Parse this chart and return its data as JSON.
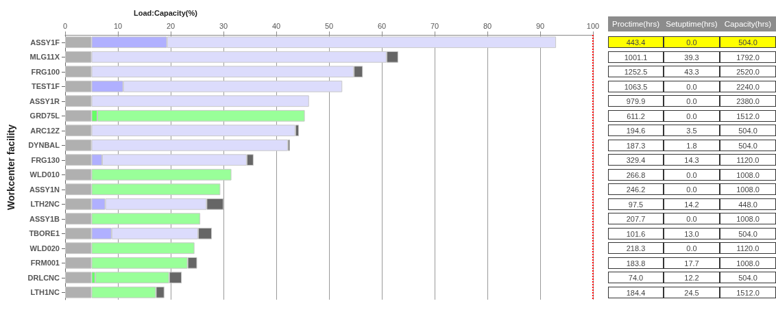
{
  "chart_data": [
    {
      "type": "bar",
      "orientation": "horizontal",
      "stacked": true,
      "title": "Load:Capacity(%)",
      "ylabel": "Workcenter facility",
      "categories": [
        "ASSY1F",
        "MLG11X",
        "FRG100",
        "TEST1F",
        "ASSY1R",
        "GRD75L",
        "ARC12Z",
        "DYNBAL",
        "FRG130",
        "WLD010",
        "ASSY1N",
        "LTH2NC",
        "ASSY1B",
        "TBORE1",
        "WLD020",
        "FRM001",
        "DRLCNC",
        "LTH1NC"
      ],
      "series": [
        {
          "color": "#b0b0b0",
          "values": [
            5,
            5,
            5,
            5,
            5,
            5,
            5,
            5,
            5,
            5,
            5,
            5,
            5,
            5,
            5,
            5,
            5,
            5
          ]
        },
        {
          "color": "#b0b0ff",
          "values": [
            14.3,
            null,
            null,
            6,
            null,
            null,
            null,
            null,
            2,
            null,
            null,
            2.6,
            null,
            3.8,
            null,
            null,
            null,
            null
          ]
        },
        {
          "color": "#66ff66",
          "values": [
            null,
            null,
            null,
            null,
            null,
            1.1,
            null,
            null,
            null,
            null,
            null,
            null,
            null,
            null,
            null,
            null,
            0.7,
            null
          ]
        },
        {
          "color": "#dcdcfc",
          "values": [
            73.7,
            55.9,
            49.7,
            41.5,
            41.2,
            null,
            38.6,
            37.2,
            27.4,
            null,
            null,
            19.2,
            null,
            16.4,
            null,
            null,
            null,
            null
          ]
        },
        {
          "color": "#99ff99",
          "values": [
            null,
            null,
            null,
            null,
            null,
            39.3,
            null,
            null,
            null,
            26.5,
            24.4,
            null,
            20.6,
            null,
            19.5,
            18.2,
            14.0,
            12.2
          ]
        },
        {
          "color": "#666666",
          "values": [
            null,
            2.2,
            1.7,
            null,
            null,
            null,
            0.7,
            0.4,
            1.3,
            null,
            null,
            3.2,
            null,
            2.6,
            null,
            1.8,
            2.4,
            1.6
          ]
        }
      ],
      "xlim": [
        0,
        100
      ],
      "xticks": [
        0,
        10,
        20,
        30,
        40,
        50,
        60,
        70,
        80,
        90,
        100
      ],
      "grid": "x",
      "ref_lines": [
        {
          "axis": "x",
          "value": 100,
          "color": "#ff0000",
          "line_style": "dotted"
        }
      ]
    },
    {
      "type": "other",
      "categories": [
        "Proctime(hrs)",
        "Setuptime(hrs)",
        "Capacity(hrs)"
      ],
      "annotations": [
        "443.4",
        "0.0",
        "504.0",
        "1001.1",
        "39.3",
        "1792.0",
        "1252.5",
        "43.3",
        "2520.0",
        "1063.5",
        "0.0",
        "2240.0",
        "979.9",
        "0.0",
        "2380.0",
        "611.2",
        "0.0",
        "1512.0",
        "194.6",
        "3.5",
        "504.0",
        "187.3",
        "1.8",
        "504.0",
        "329.4",
        "14.3",
        "1120.0",
        "266.8",
        "0.0",
        "1008.0",
        "246.2",
        "0.0",
        "1008.0",
        "97.5",
        "14.2",
        "448.0",
        "207.7",
        "0.0",
        "1008.0",
        "101.6",
        "13.0",
        "504.0",
        "218.3",
        "0.0",
        "1120.0",
        "183.8",
        "17.7",
        "1008.0",
        "74.0",
        "12.2",
        "504.0",
        "184.4",
        "24.5",
        "1512.0"
      ]
    }
  ]
}
